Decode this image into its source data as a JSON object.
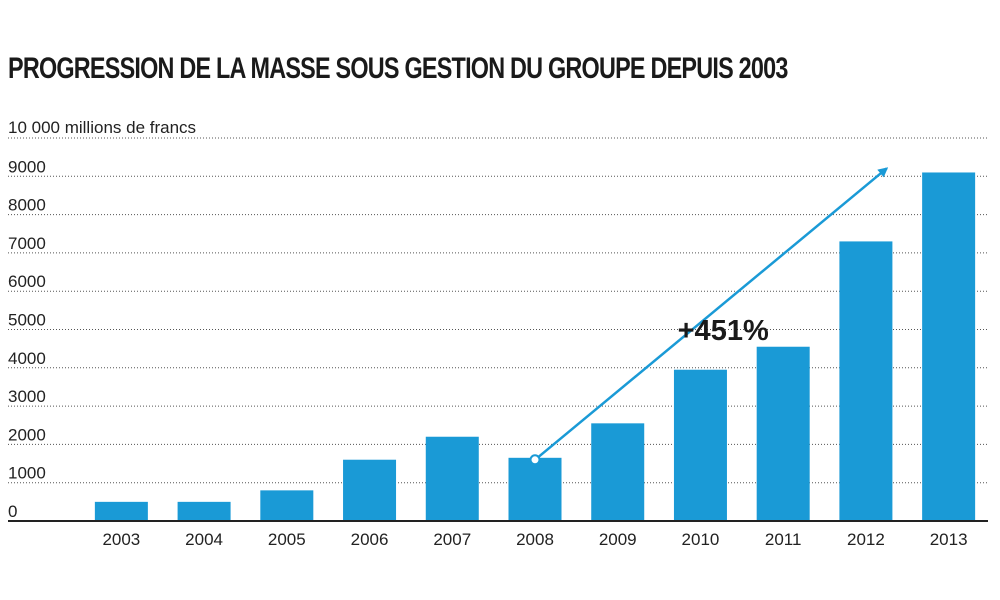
{
  "chart_data": {
    "type": "bar",
    "title": "PROGRESSION DE LA MASSE SOUS GESTION DU GROUPE DEPUIS 2003",
    "ylabel": "10 000 millions de francs",
    "xlabel": "",
    "categories": [
      "2003",
      "2004",
      "2005",
      "2006",
      "2007",
      "2008",
      "2009",
      "2010",
      "2011",
      "2012",
      "2013"
    ],
    "values": [
      500,
      500,
      800,
      1600,
      2200,
      1650,
      2550,
      3950,
      4550,
      7300,
      9100
    ],
    "ylim": [
      0,
      10000
    ],
    "yticks": [
      0,
      1000,
      2000,
      3000,
      4000,
      5000,
      6000,
      7000,
      8000,
      9000
    ],
    "ytick_labels": [
      "0",
      "1000",
      "2000",
      "3000",
      "4000",
      "5000",
      "6000",
      "7000",
      "8000",
      "9000"
    ],
    "grid": true,
    "bar_color": "#1a9ad6",
    "annotation": {
      "text": "+451%",
      "from_category": "2008",
      "from_value": 1650,
      "to_category": "2013",
      "to_value": 9100,
      "label_category": "2011",
      "label_value": 5300,
      "color": "#1a9ad6"
    }
  }
}
